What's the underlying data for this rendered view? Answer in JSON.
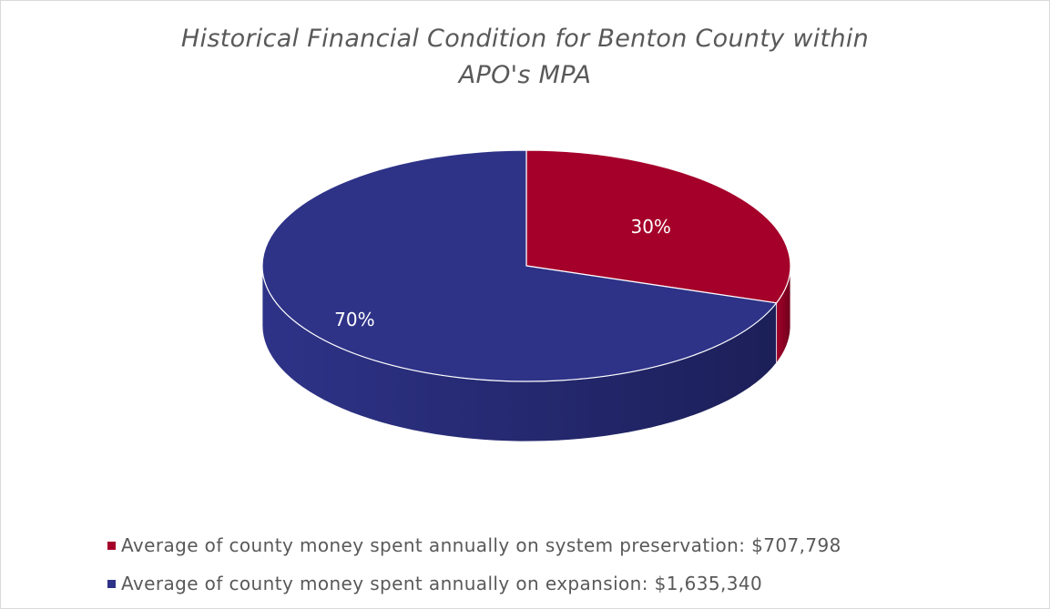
{
  "chart_data": {
    "type": "pie",
    "title_lines": [
      "Historical Financial Condition for Benton County within",
      "APO's MPA"
    ],
    "slices": [
      {
        "label": "Average of county money spent annually on system preservation: $707,798",
        "value": 707798,
        "percent_label": "30%",
        "color": "#a5002a",
        "side_color": "#6e001c"
      },
      {
        "label": "Average of county money spent annually on expansion: $1,635,340",
        "value": 1635340,
        "percent_label": "70%",
        "color": "#2e3388",
        "side_color": "#1c1f58"
      }
    ],
    "legend_position": "bottom",
    "style": "3d"
  }
}
